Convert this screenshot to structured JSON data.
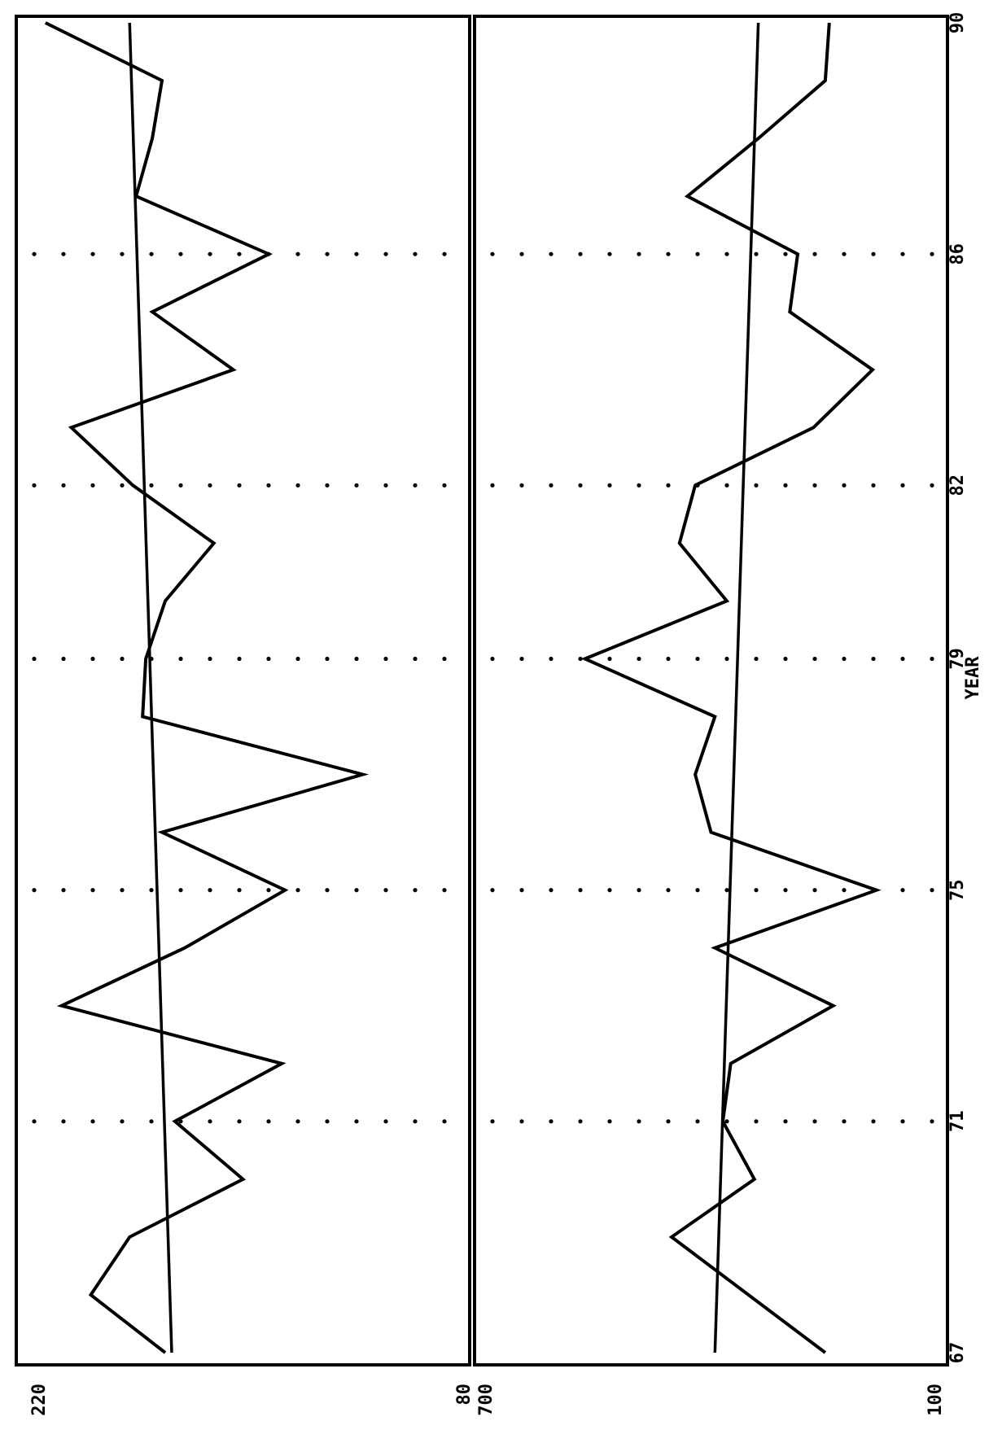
{
  "chart_data": [
    {
      "type": "line",
      "title": "",
      "xlabel": "YEAR",
      "ylabel": "",
      "xlim": [
        67,
        90
      ],
      "ylim": [
        80,
        220
      ],
      "y_tick_labels": [
        "220",
        "80"
      ],
      "x_ticks": [
        67,
        71,
        75,
        79,
        82,
        86,
        90
      ],
      "x_tick_labels": [
        "67",
        "71",
        "75",
        "79",
        "82",
        "86",
        "90"
      ],
      "grid": "vertical dotted at 71, 75, 79, 82, 86",
      "series": [
        {
          "x": [
            67,
            68,
            69,
            70,
            71,
            72,
            73,
            74,
            75,
            76,
            77,
            78,
            79,
            80,
            81,
            82,
            83,
            84,
            85,
            86,
            87,
            88,
            89,
            90
          ],
          "values": [
            174,
            197,
            185,
            150,
            171,
            138,
            206,
            168,
            137,
            175,
            113,
            181,
            180,
            174,
            159,
            184,
            203,
            153,
            178,
            142,
            183,
            178,
            175,
            211
          ]
        }
      ],
      "trend": {
        "x": [
          67,
          90
        ],
        "values": [
          172,
          185
        ]
      }
    },
    {
      "type": "line",
      "title": "",
      "xlabel": "YEAR",
      "ylabel": "",
      "xlim": [
        67,
        90
      ],
      "ylim": [
        100,
        700
      ],
      "y_tick_labels": [
        "700",
        "100"
      ],
      "x_ticks": [
        67,
        71,
        75,
        79,
        82,
        86,
        90
      ],
      "x_tick_labels": [
        "67",
        "71",
        "75",
        "79",
        "82",
        "86",
        "90"
      ],
      "grid": "vertical dotted at 71, 75, 79, 82, 86",
      "series": [
        {
          "x": [
            67,
            69,
            70,
            71,
            72,
            73,
            74,
            75,
            76,
            77,
            78,
            79,
            80,
            81,
            82,
            83,
            84,
            85,
            86,
            87,
            88,
            89,
            90
          ],
          "values": [
            255,
            450,
            345,
            385,
            375,
            245,
            395,
            190,
            400,
            420,
            395,
            560,
            380,
            440,
            420,
            270,
            195,
            300,
            290,
            430,
            340,
            255,
            250
          ]
        }
      ],
      "trend": {
        "x": [
          67,
          90
        ],
        "values": [
          395,
          340
        ]
      }
    }
  ]
}
